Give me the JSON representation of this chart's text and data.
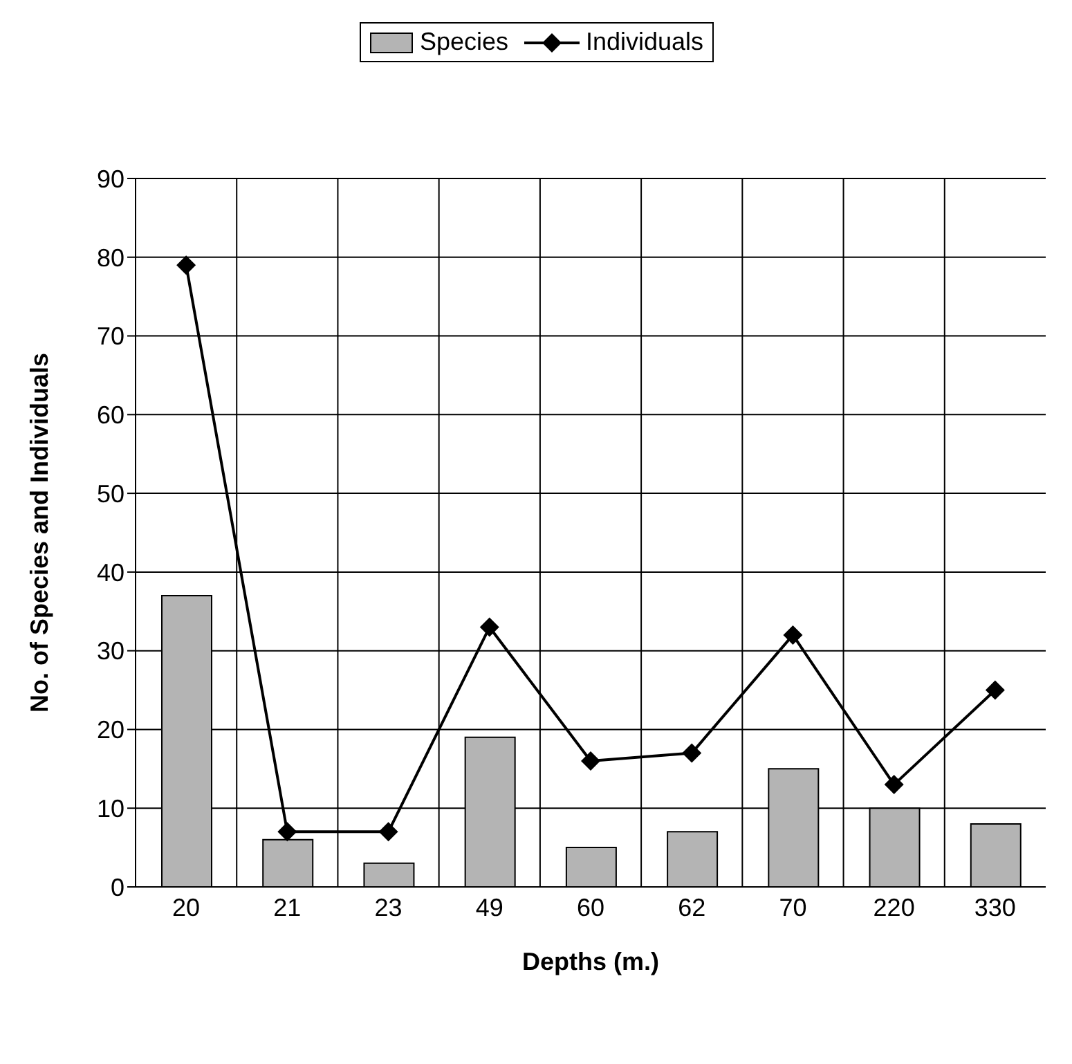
{
  "chart_data": {
    "type": "bar",
    "xlabel": "Depths (m.)",
    "ylabel": "No. of Species and Individuals",
    "categories": [
      "20",
      "21",
      "23",
      "49",
      "60",
      "62",
      "70",
      "220",
      "330"
    ],
    "series": [
      {
        "name": "Species",
        "color": "#b4b4b4",
        "values": [
          37,
          6,
          3,
          19,
          5,
          7,
          15,
          10,
          8
        ]
      },
      {
        "name": "Individuals",
        "type": "line",
        "color": "#000000",
        "values": [
          79,
          7,
          7,
          33,
          16,
          17,
          32,
          13,
          25
        ]
      }
    ],
    "ylim": [
      0,
      90
    ],
    "yticks": [
      0,
      10,
      20,
      30,
      40,
      50,
      60,
      70,
      80,
      90
    ],
    "grid": true,
    "legend": "top",
    "marker": "diamond",
    "line_style": "solid"
  }
}
